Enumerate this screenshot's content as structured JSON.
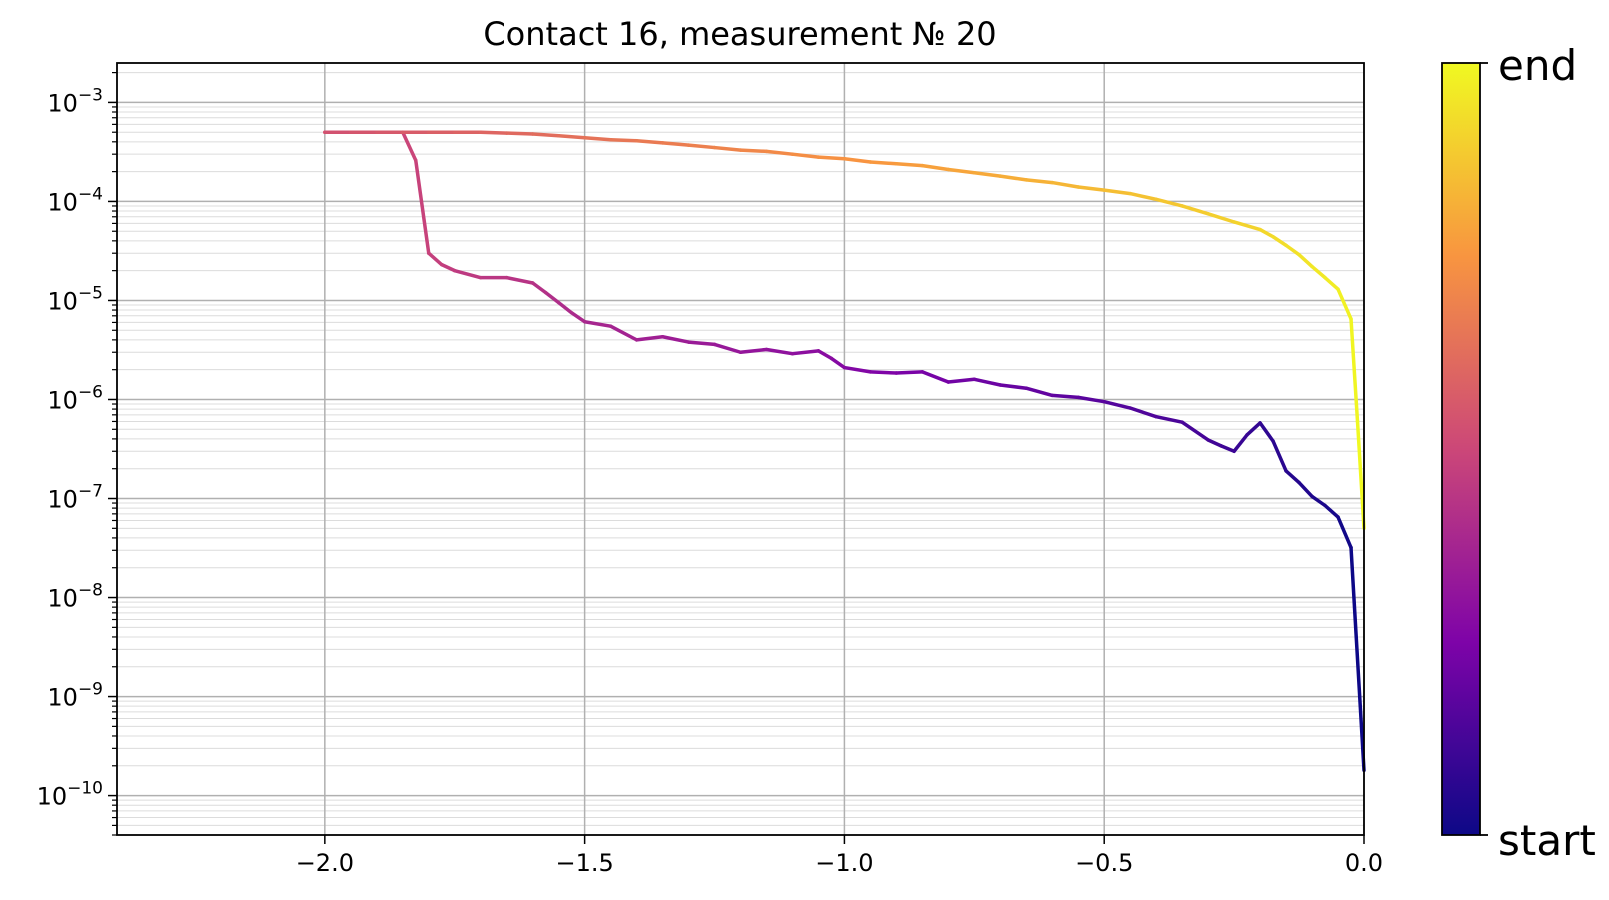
{
  "chart_data": {
    "type": "line",
    "title": "Contact 16, measurement № 20",
    "xlabel": "",
    "ylabel": "",
    "xlim": [
      -2.4,
      0.0
    ],
    "ylim": [
      4e-11,
      0.0025
    ],
    "yscale": "log",
    "grid": true,
    "x_ticks": [
      {
        "value": -2.0,
        "label": "−2.0"
      },
      {
        "value": -1.5,
        "label": "−1.5"
      },
      {
        "value": -1.0,
        "label": "−1.0"
      },
      {
        "value": -0.5,
        "label": "−0.5"
      },
      {
        "value": 0.0,
        "label": "0.0"
      }
    ],
    "y_ticks": [
      {
        "value": 0.001,
        "base": "10",
        "exp": "−3"
      },
      {
        "value": 0.0001,
        "base": "10",
        "exp": "−4"
      },
      {
        "value": 1e-05,
        "base": "10",
        "exp": "−5"
      },
      {
        "value": 1e-06,
        "base": "10",
        "exp": "−6"
      },
      {
        "value": 1e-07,
        "base": "10",
        "exp": "−7"
      },
      {
        "value": 1e-08,
        "base": "10",
        "exp": "−8"
      },
      {
        "value": 1e-09,
        "base": "10",
        "exp": "−9"
      },
      {
        "value": 1e-10,
        "base": "10",
        "exp": "−10"
      }
    ],
    "colormap": "plasma",
    "colorbar": {
      "low_label": "start",
      "high_label": "end"
    },
    "series": [
      {
        "x": [
          0.0,
          -0.025,
          -0.05,
          -0.075,
          -0.1,
          -0.125,
          -0.15,
          -0.175,
          -0.2,
          -0.225,
          -0.25,
          -0.275,
          -0.3,
          -0.35,
          -0.4,
          -0.45,
          -0.5,
          -0.55,
          -0.6,
          -0.65,
          -0.7,
          -0.75,
          -0.8,
          -0.85,
          -0.9,
          -0.95,
          -1.0,
          -1.025,
          -1.05,
          -1.1,
          -1.15,
          -1.2,
          -1.25,
          -1.3,
          -1.35,
          -1.4,
          -1.45,
          -1.5,
          -1.525,
          -1.55,
          -1.575,
          -1.6,
          -1.65,
          -1.7,
          -1.75,
          -1.775,
          -1.8,
          -1.825,
          -1.85,
          -1.9,
          -1.95,
          -2.0,
          -1.95,
          -1.9,
          -1.85,
          -1.8,
          -1.75,
          -1.7,
          -1.65,
          -1.6,
          -1.55,
          -1.5,
          -1.45,
          -1.4,
          -1.35,
          -1.3,
          -1.25,
          -1.2,
          -1.15,
          -1.1,
          -1.05,
          -1.0,
          -0.95,
          -0.9,
          -0.85,
          -0.8,
          -0.75,
          -0.7,
          -0.65,
          -0.6,
          -0.55,
          -0.5,
          -0.45,
          -0.4,
          -0.35,
          -0.3,
          -0.25,
          -0.2,
          -0.175,
          -0.15,
          -0.125,
          -0.1,
          -0.075,
          -0.05,
          -0.025,
          -0.0125,
          0.0
        ],
        "y": [
          1.8e-10,
          3.2e-08,
          6.5e-08,
          8.5e-08,
          1.05e-07,
          1.45e-07,
          1.9e-07,
          3.8e-07,
          5.8e-07,
          4.4e-07,
          3e-07,
          3.4e-07,
          3.9e-07,
          5.9e-07,
          6.7e-07,
          8.2e-07,
          9.5e-07,
          1.05e-06,
          1.1e-06,
          1.3e-06,
          1.4e-06,
          1.6e-06,
          1.5e-06,
          1.9e-06,
          1.85e-06,
          1.9e-06,
          2.1e-06,
          2.6e-06,
          3.1e-06,
          2.9e-06,
          3.2e-06,
          3e-06,
          3.6e-06,
          3.8e-06,
          4.3e-06,
          4e-06,
          5.5e-06,
          6.1e-06,
          7.5e-06,
          9.5e-06,
          1.2e-05,
          1.5e-05,
          1.7e-05,
          1.7e-05,
          2e-05,
          2.3e-05,
          3e-05,
          0.00026,
          0.0005,
          0.0005,
          0.0005,
          0.0005,
          0.0005,
          0.0005,
          0.0005,
          0.0005,
          0.0005,
          0.0005,
          0.00049,
          0.00048,
          0.00046,
          0.00044,
          0.00042,
          0.00041,
          0.00039,
          0.00037,
          0.00035,
          0.00033,
          0.00032,
          0.0003,
          0.00028,
          0.00027,
          0.00025,
          0.00024,
          0.00023,
          0.00021,
          0.000195,
          0.00018,
          0.000165,
          0.000155,
          0.00014,
          0.00013,
          0.00012,
          0.000105,
          9e-05,
          7.5e-05,
          6.2e-05,
          5.2e-05,
          4.4e-05,
          3.6e-05,
          2.9e-05,
          2.2e-05,
          1.7e-05,
          1.3e-05,
          6.5e-06,
          6e-07,
          5e-08
        ]
      }
    ]
  }
}
